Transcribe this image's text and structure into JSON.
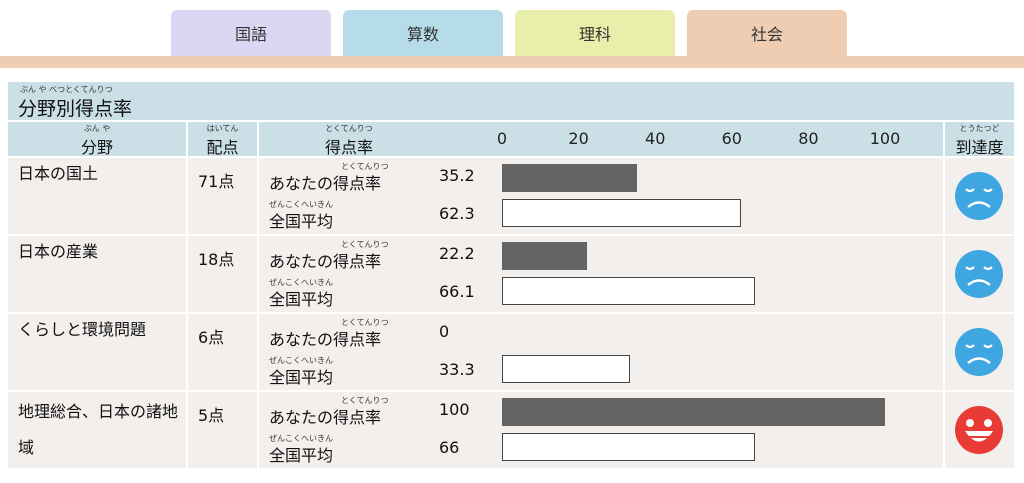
{
  "tabs": [
    {
      "label": "国語",
      "color": "#dcd6f2"
    },
    {
      "label": "算数",
      "color": "#b6dcea"
    },
    {
      "label": "理科",
      "color": "#e8efab"
    },
    {
      "label": "社会",
      "color": "#eecdb2"
    }
  ],
  "active_tab": "社会",
  "panel": {
    "title": "分野別得点率",
    "title_ruby": "ぶん や べつとくてんりつ",
    "headers": {
      "field": "分野",
      "field_ruby": "ぶん や",
      "points": "配点",
      "points_ruby": "はいてん",
      "rate": "得点率",
      "rate_ruby": "とくてんりつ",
      "achievement": "到達度",
      "achievement_ruby": "とうたつど"
    },
    "axis_ticks": [
      "0",
      "20",
      "40",
      "60",
      "80",
      "100"
    ],
    "your_label": "あなたの得点率",
    "your_ruby": "とくてんりつ",
    "avg_label": "全国平均",
    "avg_ruby": "ぜんこくへいきん",
    "colors": {
      "your_bar": "#646464",
      "avg_bar": "#ffffff",
      "sad_face": "#3ea6e0",
      "happy_face": "#e83b36"
    },
    "rows": [
      {
        "name": "日本の国土",
        "points": "71点",
        "your": "35.2",
        "avg": "62.3",
        "face": "sad"
      },
      {
        "name": "日本の産業",
        "points": "18点",
        "your": "22.2",
        "avg": "66.1",
        "face": "sad"
      },
      {
        "name": "くらしと環境問題",
        "points": "6点",
        "your": "0",
        "avg": "33.3",
        "face": "sad"
      },
      {
        "name": "地理総合、日本の諸地域",
        "points": "5点",
        "your": "100",
        "avg": "66",
        "face": "happy"
      }
    ]
  }
}
